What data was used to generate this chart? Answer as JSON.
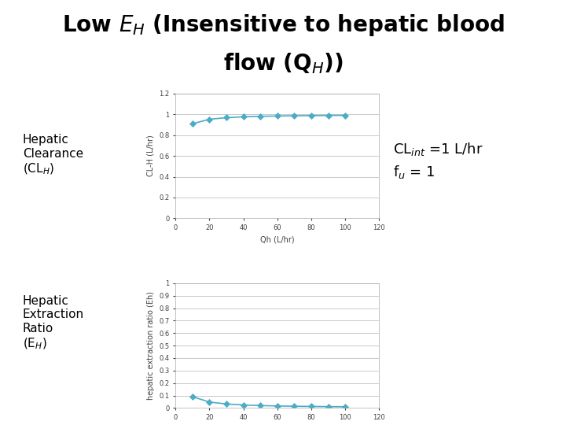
{
  "cl_int": 1.0,
  "fu": 1.0,
  "qh_values": [
    10,
    20,
    30,
    40,
    50,
    60,
    70,
    80,
    90,
    100
  ],
  "chart1": {
    "ylabel": "CL-H (L/hr)",
    "xlabel": "Qh (L/hr)",
    "xlim": [
      0,
      120
    ],
    "ylim": [
      0,
      1.2
    ],
    "yticks": [
      0,
      0.2,
      0.4,
      0.6,
      0.8,
      1.0,
      1.2
    ],
    "yticklabels": [
      "0",
      "0.2",
      "0.4",
      "0.6",
      "0.8",
      "1",
      "1.2"
    ],
    "xticks": [
      0,
      20,
      40,
      60,
      80,
      100,
      120
    ],
    "xticklabels": [
      "0",
      "20",
      "40",
      "60",
      "80",
      "100",
      "120"
    ]
  },
  "chart2": {
    "ylabel": "hepatic extraction ratio (Eh)",
    "xlabel": "Qh (L/hr)",
    "xlim": [
      0,
      120
    ],
    "ylim": [
      0,
      1.0
    ],
    "yticks": [
      0,
      0.1,
      0.2,
      0.3,
      0.4,
      0.5,
      0.6,
      0.7,
      0.8,
      0.9,
      1.0
    ],
    "yticklabels": [
      "0",
      "0.1",
      "0.2",
      "0.3",
      "0.4",
      "0.5",
      "0.6",
      "0.7",
      "0.8",
      "0.9",
      "1"
    ],
    "xticks": [
      0,
      20,
      40,
      60,
      80,
      100,
      120
    ],
    "xticklabels": [
      "0",
      "20",
      "40",
      "60",
      "80",
      "100",
      "120"
    ]
  },
  "line_color": "#4bacc6",
  "marker": "D",
  "marker_size": 4,
  "background_color": "#ffffff",
  "label_color": "#404040",
  "chart_bg": "#ffffff",
  "grid_color": "#c0c0c0",
  "left_label1_text": "Hepatic\nClearance\n(CL$_H$)",
  "left_label2_text": "Hepatic\nExtraction\nRatio\n(E$_H$)",
  "annotation_line1": "CL$_{int}$ =1 L/hr",
  "annotation_line2": "f$_u$ = 1"
}
